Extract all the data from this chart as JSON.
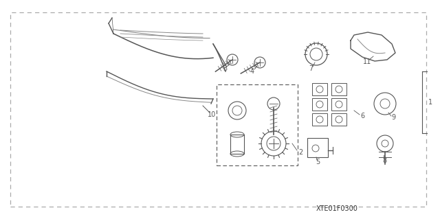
{
  "background_color": "#ffffff",
  "part_number_text": "XTE01F0300",
  "line_color": "#555555",
  "light_gray": "#888888",
  "border_color": "#aaaaaa"
}
